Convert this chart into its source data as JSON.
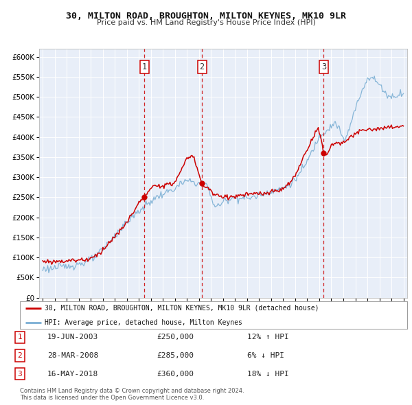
{
  "title": "30, MILTON ROAD, BROUGHTON, MILTON KEYNES, MK10 9LR",
  "subtitle": "Price paid vs. HM Land Registry's House Price Index (HPI)",
  "background_color": "#ffffff",
  "plot_bg_color": "#e8eef8",
  "grid_color": "#ffffff",
  "sale_color": "#cc0000",
  "hpi_color": "#7bafd4",
  "sale_label": "30, MILTON ROAD, BROUGHTON, MILTON KEYNES, MK10 9LR (detached house)",
  "hpi_label": "HPI: Average price, detached house, Milton Keynes",
  "transactions": [
    {
      "num": 1,
      "date": "19-JUN-2003",
      "price": 250000,
      "pct": "12%",
      "dir": "↑",
      "x": 2003.46
    },
    {
      "num": 2,
      "date": "28-MAR-2008",
      "price": 285000,
      "pct": "6%",
      "dir": "↓",
      "x": 2008.24
    },
    {
      "num": 3,
      "date": "16-MAY-2018",
      "price": 360000,
      "pct": "18%",
      "dir": "↓",
      "x": 2018.37
    }
  ],
  "footer_line1": "Contains HM Land Registry data © Crown copyright and database right 2024.",
  "footer_line2": "This data is licensed under the Open Government Licence v3.0.",
  "ylim": [
    0,
    620000
  ],
  "yticks": [
    0,
    50000,
    100000,
    150000,
    200000,
    250000,
    300000,
    350000,
    400000,
    450000,
    500000,
    550000,
    600000
  ],
  "xlim": [
    1994.7,
    2025.3
  ],
  "hpi_anchors_x": [
    1995,
    1996,
    1997,
    1998,
    1999,
    2000,
    2001,
    2002,
    2003,
    2004,
    2005,
    2006,
    2007,
    2008,
    2008.8,
    2009.2,
    2009.7,
    2010,
    2011,
    2012,
    2013,
    2014,
    2015,
    2016,
    2017,
    2017.5,
    2018,
    2018.5,
    2019,
    2019.5,
    2020,
    2020.5,
    2021,
    2021.5,
    2022,
    2022.5,
    2023,
    2023.5,
    2024,
    2024.5,
    2025
  ],
  "hpi_anchors_y": [
    72000,
    74000,
    78000,
    84000,
    94000,
    120000,
    155000,
    188000,
    215000,
    240000,
    258000,
    272000,
    290000,
    285000,
    270000,
    235000,
    230000,
    238000,
    248000,
    248000,
    255000,
    265000,
    273000,
    295000,
    340000,
    370000,
    400000,
    415000,
    428000,
    430000,
    395000,
    420000,
    470000,
    510000,
    545000,
    545000,
    530000,
    510000,
    500000,
    505000,
    510000
  ],
  "sale_anchors_x": [
    1995,
    1996,
    1997,
    1998,
    1999,
    2000,
    2001,
    2002,
    2003,
    2003.46,
    2004,
    2005,
    2006,
    2007,
    2007.5,
    2008.24,
    2008.8,
    2009.2,
    2009.8,
    2010,
    2011,
    2012,
    2013,
    2014,
    2015,
    2016,
    2017,
    2017.5,
    2018,
    2018.37,
    2018.8,
    2019,
    2019.5,
    2020,
    2020.5,
    2021,
    2021.5,
    2022,
    2022.5,
    2023,
    2023.5,
    2024,
    2024.5,
    2025
  ],
  "sale_anchors_y": [
    90000,
    90000,
    92000,
    94000,
    98000,
    120000,
    152000,
    188000,
    235000,
    250000,
    270000,
    280000,
    290000,
    345000,
    350000,
    285000,
    272000,
    258000,
    252000,
    252000,
    252000,
    257000,
    258000,
    262000,
    272000,
    305000,
    370000,
    400000,
    415000,
    360000,
    368000,
    378000,
    385000,
    388000,
    395000,
    408000,
    415000,
    418000,
    420000,
    420000,
    422000,
    424000,
    426000,
    426000
  ]
}
